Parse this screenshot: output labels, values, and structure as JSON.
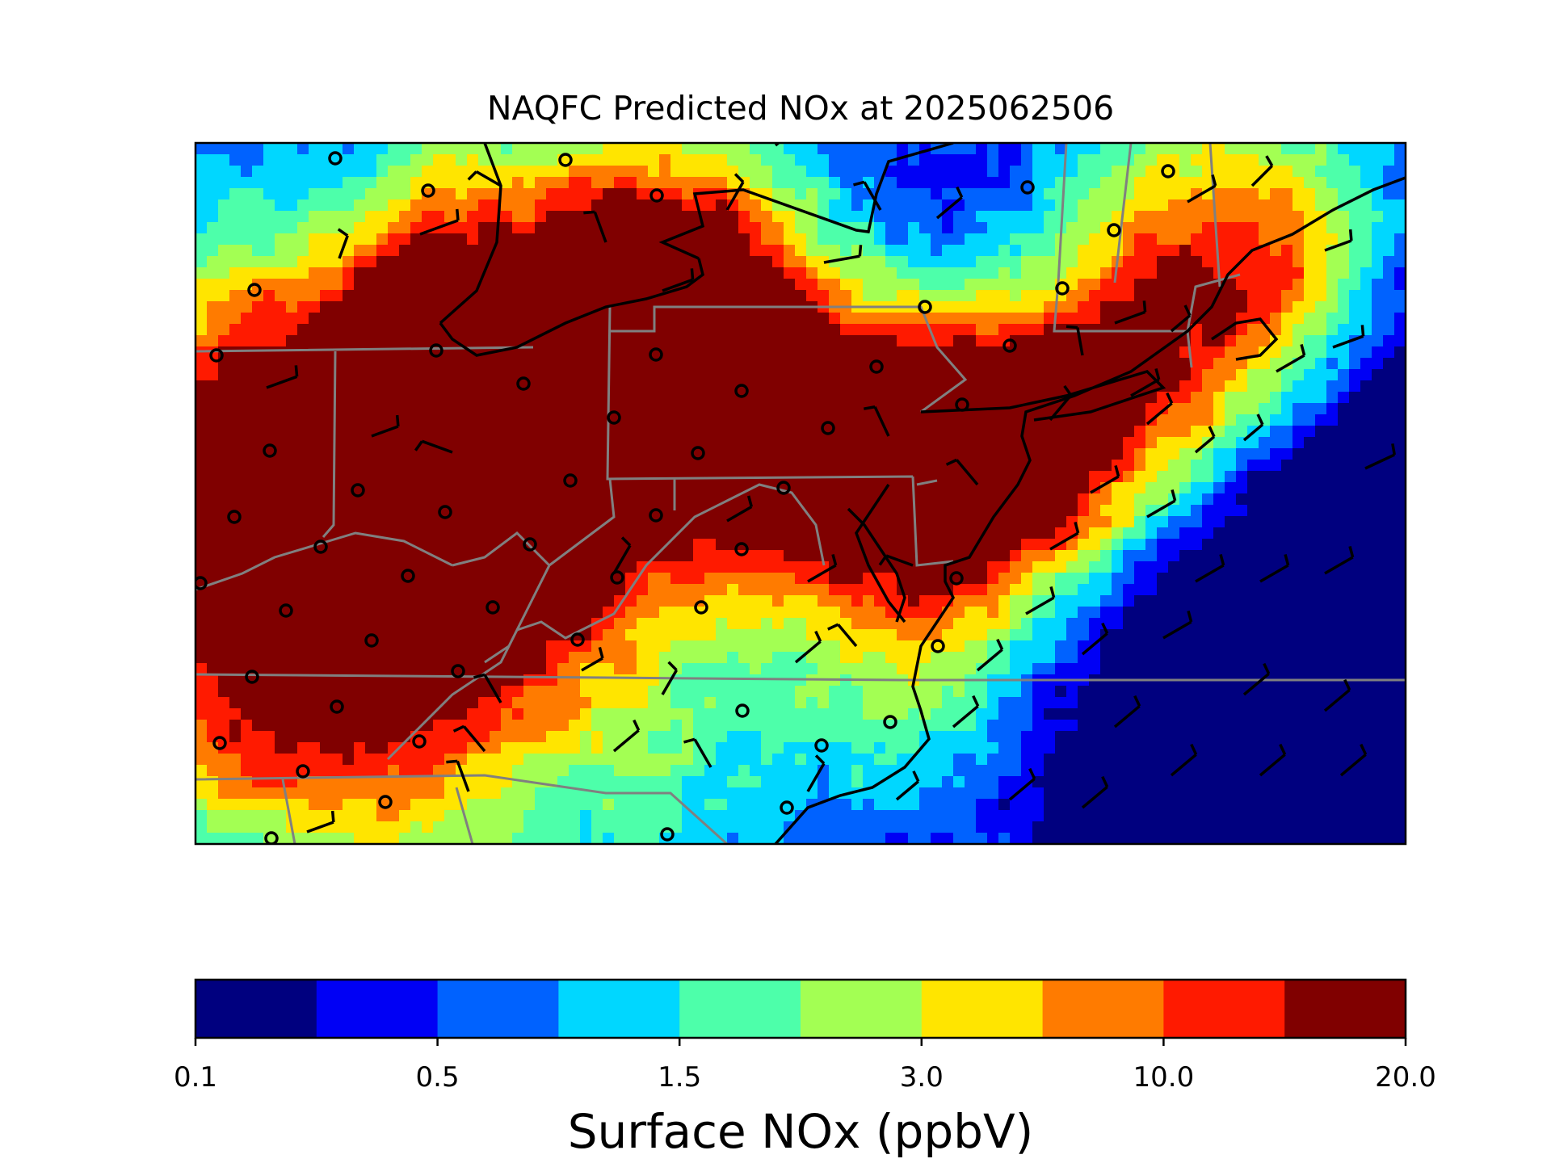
{
  "figure": {
    "title": "NAQFC Predicted NOx at 2025062506"
  },
  "colorbar": {
    "label": "Surface NOx (ppbV)",
    "tick_labels": [
      "0.1",
      "0.5",
      "1.5",
      "3.0",
      "10.0",
      "20.0"
    ],
    "tick_bin_index": [
      0,
      2,
      4,
      6,
      8,
      10
    ],
    "colors": [
      "#00007f",
      "#0000f5",
      "#0062ff",
      "#00d7ff",
      "#4dffaa",
      "#a3ff53",
      "#ffe500",
      "#ff7b00",
      "#ff1a00",
      "#800000"
    ],
    "bounds": [
      0.1,
      0.3,
      0.5,
      1.0,
      1.5,
      2.0,
      3.0,
      5.0,
      10.0,
      15.0,
      20.0
    ]
  },
  "map": {
    "region": "US Mid-Atlantic / Northeast",
    "field": "Surface NOx",
    "overlays": [
      "wind barbs",
      "monitoring station markers",
      "state boundaries",
      "coastlines"
    ],
    "colors": {
      "state_border": "#808080",
      "coastline": "#000000",
      "wind_barb": "#000000",
      "station_marker": "#000000"
    }
  }
}
